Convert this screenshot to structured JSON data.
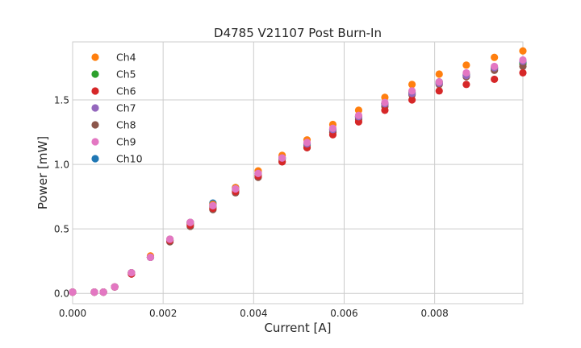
{
  "chart_data": {
    "type": "scatter",
    "title": "D4785 V21107 Post Burn-In",
    "xlabel": "Current [A]",
    "ylabel": "Power [mW]",
    "xlim": [
      0,
      0.00995
    ],
    "ylim": [
      -0.08,
      1.95
    ],
    "x_ticks": [
      0,
      0.002,
      0.004,
      0.006,
      0.008
    ],
    "x_tick_labels": [
      "0.000",
      "0.002",
      "0.004",
      "0.006",
      "0.008"
    ],
    "y_ticks": [
      0,
      0.5,
      1.0,
      1.5
    ],
    "y_tick_labels": [
      "0.0",
      "0.5",
      "1.0",
      "1.5"
    ],
    "grid": true,
    "legend_position": "top-left",
    "x": [
      0.0,
      0.00048,
      0.00068,
      0.00093,
      0.0013,
      0.00172,
      0.00215,
      0.0026,
      0.0031,
      0.0036,
      0.0041,
      0.00463,
      0.00518,
      0.00575,
      0.00632,
      0.0069,
      0.0075,
      0.0081,
      0.0087,
      0.00932,
      0.00995
    ],
    "series": [
      {
        "name": "Ch4",
        "color": "#ff7f0e",
        "values": [
          0.01,
          0.01,
          0.01,
          0.05,
          0.16,
          0.29,
          0.42,
          0.55,
          0.69,
          0.82,
          0.95,
          1.07,
          1.19,
          1.31,
          1.42,
          1.52,
          1.62,
          1.7,
          1.77,
          1.83,
          1.88
        ]
      },
      {
        "name": "Ch5",
        "color": "#2ca02c",
        "values": [
          0.01,
          0.01,
          0.01,
          0.05,
          0.16,
          0.28,
          0.41,
          0.54,
          0.67,
          0.8,
          0.92,
          1.04,
          1.15,
          1.27,
          1.37,
          1.47,
          1.56,
          1.64,
          1.7,
          1.75,
          1.78
        ]
      },
      {
        "name": "Ch6",
        "color": "#d62728",
        "values": [
          0.01,
          0.01,
          0.01,
          0.05,
          0.15,
          0.28,
          0.41,
          0.53,
          0.66,
          0.79,
          0.91,
          1.02,
          1.13,
          1.23,
          1.33,
          1.42,
          1.5,
          1.57,
          1.62,
          1.66,
          1.71
        ]
      },
      {
        "name": "Ch7",
        "color": "#9467bd",
        "values": [
          0.01,
          0.01,
          0.01,
          0.05,
          0.16,
          0.28,
          0.42,
          0.55,
          0.68,
          0.81,
          0.93,
          1.05,
          1.16,
          1.27,
          1.37,
          1.47,
          1.55,
          1.63,
          1.69,
          1.75,
          1.8
        ]
      },
      {
        "name": "Ch8",
        "color": "#8c564b",
        "values": [
          0.01,
          0.01,
          0.01,
          0.05,
          0.15,
          0.28,
          0.4,
          0.52,
          0.65,
          0.78,
          0.9,
          1.02,
          1.13,
          1.25,
          1.35,
          1.45,
          1.54,
          1.62,
          1.68,
          1.73,
          1.76
        ]
      },
      {
        "name": "Ch9",
        "color": "#e377c2",
        "values": [
          0.01,
          0.01,
          0.01,
          0.05,
          0.16,
          0.28,
          0.42,
          0.55,
          0.68,
          0.81,
          0.93,
          1.05,
          1.17,
          1.28,
          1.38,
          1.48,
          1.57,
          1.64,
          1.71,
          1.76,
          1.81
        ]
      },
      {
        "name": "Ch10",
        "color": "#1f77b4",
        "values": [
          0.01,
          0.01,
          0.01,
          0.05,
          0.16,
          0.28,
          0.41,
          0.55,
          0.7,
          0.82,
          0.93,
          1.05,
          1.16,
          1.27,
          1.37,
          1.47,
          1.55,
          1.63,
          1.69,
          1.74,
          1.79
        ]
      }
    ],
    "draw_order": [
      6,
      1,
      4,
      2,
      0,
      3,
      5
    ]
  }
}
